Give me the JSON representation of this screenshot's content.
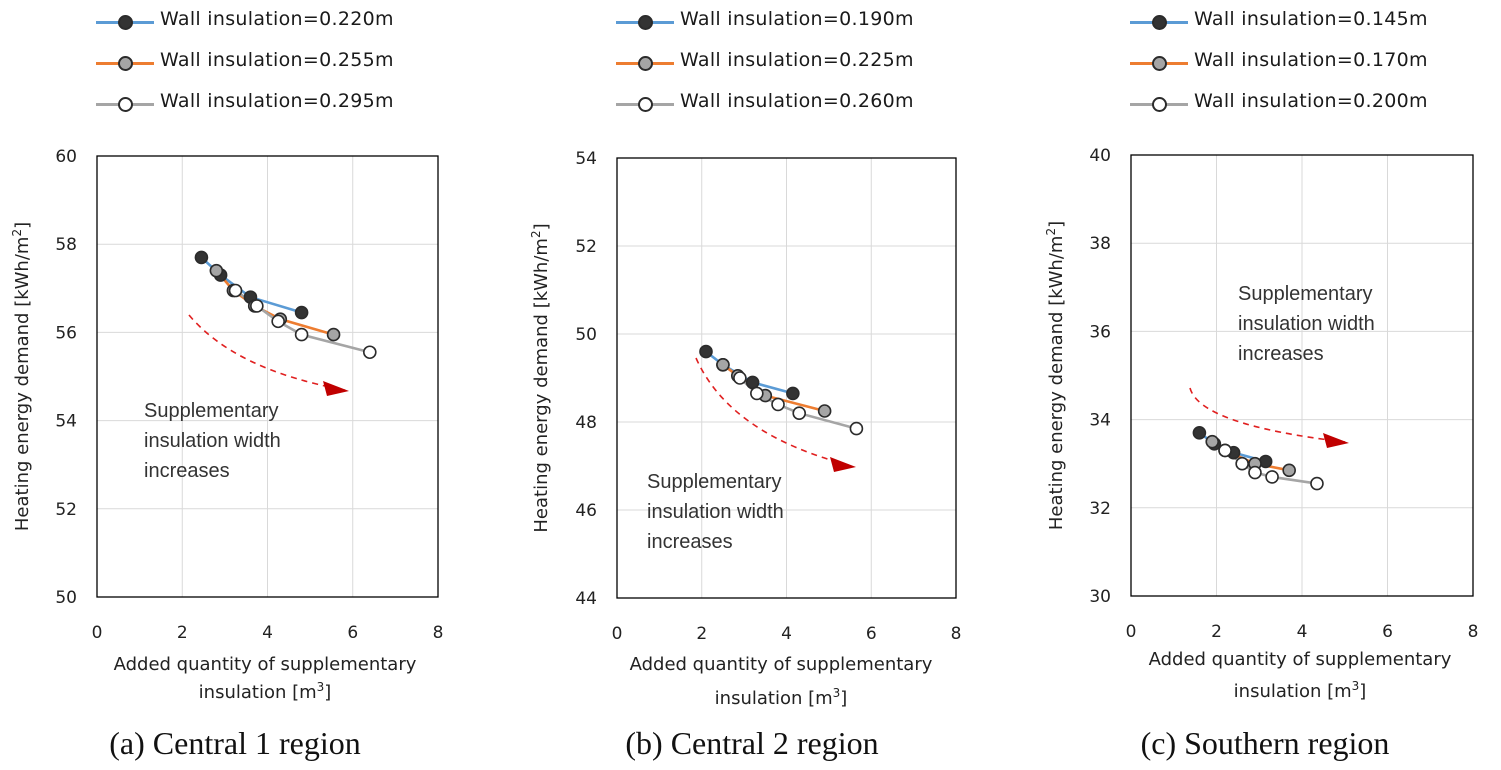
{
  "chart_data": [
    {
      "type": "line",
      "caption": "(a) Central 1 region",
      "xlabel_line1": "Added quantity of supplementary",
      "xlabel_line2": "insulation [m",
      "xlabel_sup": "3",
      "xlabel_end": "]",
      "ylabel": "Heating energy demand [kWh/m",
      "ylabel_sup": "2",
      "ylabel_end": "]",
      "xlim": [
        0,
        8
      ],
      "ylim": [
        50,
        60
      ],
      "xticks": [
        0,
        2,
        4,
        6,
        8
      ],
      "yticks": [
        50,
        52,
        54,
        56,
        58,
        60
      ],
      "annotation": [
        "Supplementary",
        "insulation width",
        "increases"
      ],
      "series": [
        {
          "name": "Wall insulation=0.220m",
          "color": "#5b9bd5",
          "marker": "#333333",
          "x": [
            2.45,
            2.9,
            3.6,
            4.8
          ],
          "y": [
            57.7,
            57.3,
            56.8,
            56.45
          ]
        },
        {
          "name": "Wall insulation=0.255m",
          "color": "#ed7d31",
          "marker": "#a5a5a5",
          "x": [
            2.8,
            3.2,
            3.7,
            4.3,
            5.55
          ],
          "y": [
            57.4,
            56.95,
            56.6,
            56.3,
            55.95
          ]
        },
        {
          "name": "Wall insulation=0.295m",
          "color": "#a5a5a5",
          "marker": "#ffffff",
          "x": [
            3.25,
            3.75,
            4.25,
            4.8,
            6.4
          ],
          "y": [
            56.95,
            56.6,
            56.25,
            55.95,
            55.55
          ]
        }
      ]
    },
    {
      "type": "line",
      "caption": "(b) Central 2 region",
      "xlabel_line1": "Added quantity of supplementary",
      "xlabel_line2": "insulation [m",
      "xlabel_sup": "3",
      "xlabel_end": "]",
      "ylabel": "Heating energy demand [kWh/m",
      "ylabel_sup": "2",
      "ylabel_end": "]",
      "xlim": [
        0,
        8
      ],
      "ylim": [
        44,
        54
      ],
      "xticks": [
        0,
        2,
        4,
        6,
        8
      ],
      "yticks": [
        44,
        46,
        48,
        50,
        52,
        54
      ],
      "annotation": [
        "Supplementary",
        "insulation width",
        "increases"
      ],
      "series": [
        {
          "name": "Wall insulation=0.190m",
          "color": "#5b9bd5",
          "marker": "#333333",
          "x": [
            2.1,
            2.5,
            3.2,
            4.15
          ],
          "y": [
            49.6,
            49.3,
            48.9,
            48.65
          ]
        },
        {
          "name": "Wall insulation=0.225m",
          "color": "#ed7d31",
          "marker": "#a5a5a5",
          "x": [
            2.5,
            2.85,
            3.5,
            4.9
          ],
          "y": [
            49.3,
            49.05,
            48.6,
            48.25
          ]
        },
        {
          "name": "Wall insulation=0.260m",
          "color": "#a5a5a5",
          "marker": "#ffffff",
          "x": [
            2.9,
            3.3,
            3.8,
            4.3,
            5.65
          ],
          "y": [
            49.0,
            48.65,
            48.4,
            48.2,
            47.85
          ]
        }
      ]
    },
    {
      "type": "line",
      "caption": "(c) Southern region",
      "xlabel_line1": "Added quantity of supplementary",
      "xlabel_line2": "insulation [m",
      "xlabel_sup": "3",
      "xlabel_end": "]",
      "ylabel": "Heating energy demand [kWh/m",
      "ylabel_sup": "2",
      "ylabel_end": "]",
      "xlim": [
        0,
        8
      ],
      "ylim": [
        30,
        40
      ],
      "xticks": [
        0,
        2,
        4,
        6,
        8
      ],
      "yticks": [
        30,
        32,
        34,
        36,
        38,
        40
      ],
      "annotation": [
        "Supplementary",
        "insulation  width",
        "increases"
      ],
      "series": [
        {
          "name": "Wall insulation=0.145m",
          "color": "#5b9bd5",
          "marker": "#333333",
          "x": [
            1.6,
            1.95,
            2.4,
            3.15
          ],
          "y": [
            33.7,
            33.45,
            33.25,
            33.05
          ]
        },
        {
          "name": "Wall insulation=0.170m",
          "color": "#ed7d31",
          "marker": "#a5a5a5",
          "x": [
            1.9,
            2.2,
            2.9,
            3.7
          ],
          "y": [
            33.5,
            33.3,
            33.0,
            32.85
          ]
        },
        {
          "name": "Wall insulation=0.200m",
          "color": "#a5a5a5",
          "marker": "#ffffff",
          "x": [
            2.2,
            2.6,
            2.9,
            3.3,
            4.35
          ],
          "y": [
            33.3,
            33.0,
            32.8,
            32.7,
            32.55
          ]
        }
      ]
    }
  ]
}
